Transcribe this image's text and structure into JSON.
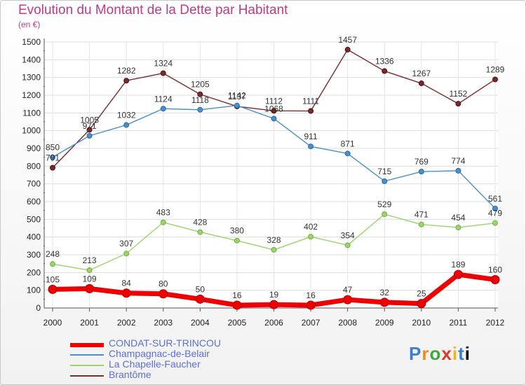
{
  "title": "Evolution du Montant de la Dette par Habitant",
  "unit": "(en €)",
  "logo": "Proxiti",
  "chart_data": {
    "type": "line",
    "title": "Evolution du Montant de la Dette par Habitant",
    "ylabel": "(en €)",
    "ylim": [
      0,
      1500
    ],
    "yticks": [
      0,
      100,
      200,
      300,
      400,
      500,
      600,
      700,
      800,
      900,
      1000,
      1100,
      1200,
      1300,
      1400,
      1500
    ],
    "categories": [
      "2000",
      "2001",
      "2002",
      "2003",
      "2004",
      "2005",
      "2006",
      "2007",
      "2008",
      "2009",
      "2010",
      "2011",
      "2012"
    ],
    "grid": true,
    "legend": "bottom-left",
    "series": [
      {
        "name": "CONDAT-SUR-TRINCOU",
        "color": "#ee0000",
        "values": [
          105,
          109,
          84,
          80,
          50,
          16,
          19,
          16,
          47,
          32,
          25,
          189,
          160
        ]
      },
      {
        "name": "Champagnac-de-Belair",
        "color": "#4a8fcc",
        "values": [
          850,
          971,
          1032,
          1124,
          1118,
          1142,
          1068,
          911,
          871,
          715,
          769,
          774,
          561
        ]
      },
      {
        "name": "La Chapelle-Faucher",
        "color": "#9ad46a",
        "values": [
          248,
          213,
          307,
          483,
          428,
          380,
          328,
          402,
          354,
          529,
          471,
          454,
          479
        ]
      },
      {
        "name": "Brantôme",
        "color": "#7a2a2a",
        "values": [
          791,
          1005,
          1282,
          1324,
          1205,
          1137,
          1112,
          1111,
          1457,
          1336,
          1267,
          1152,
          1289
        ]
      }
    ]
  }
}
